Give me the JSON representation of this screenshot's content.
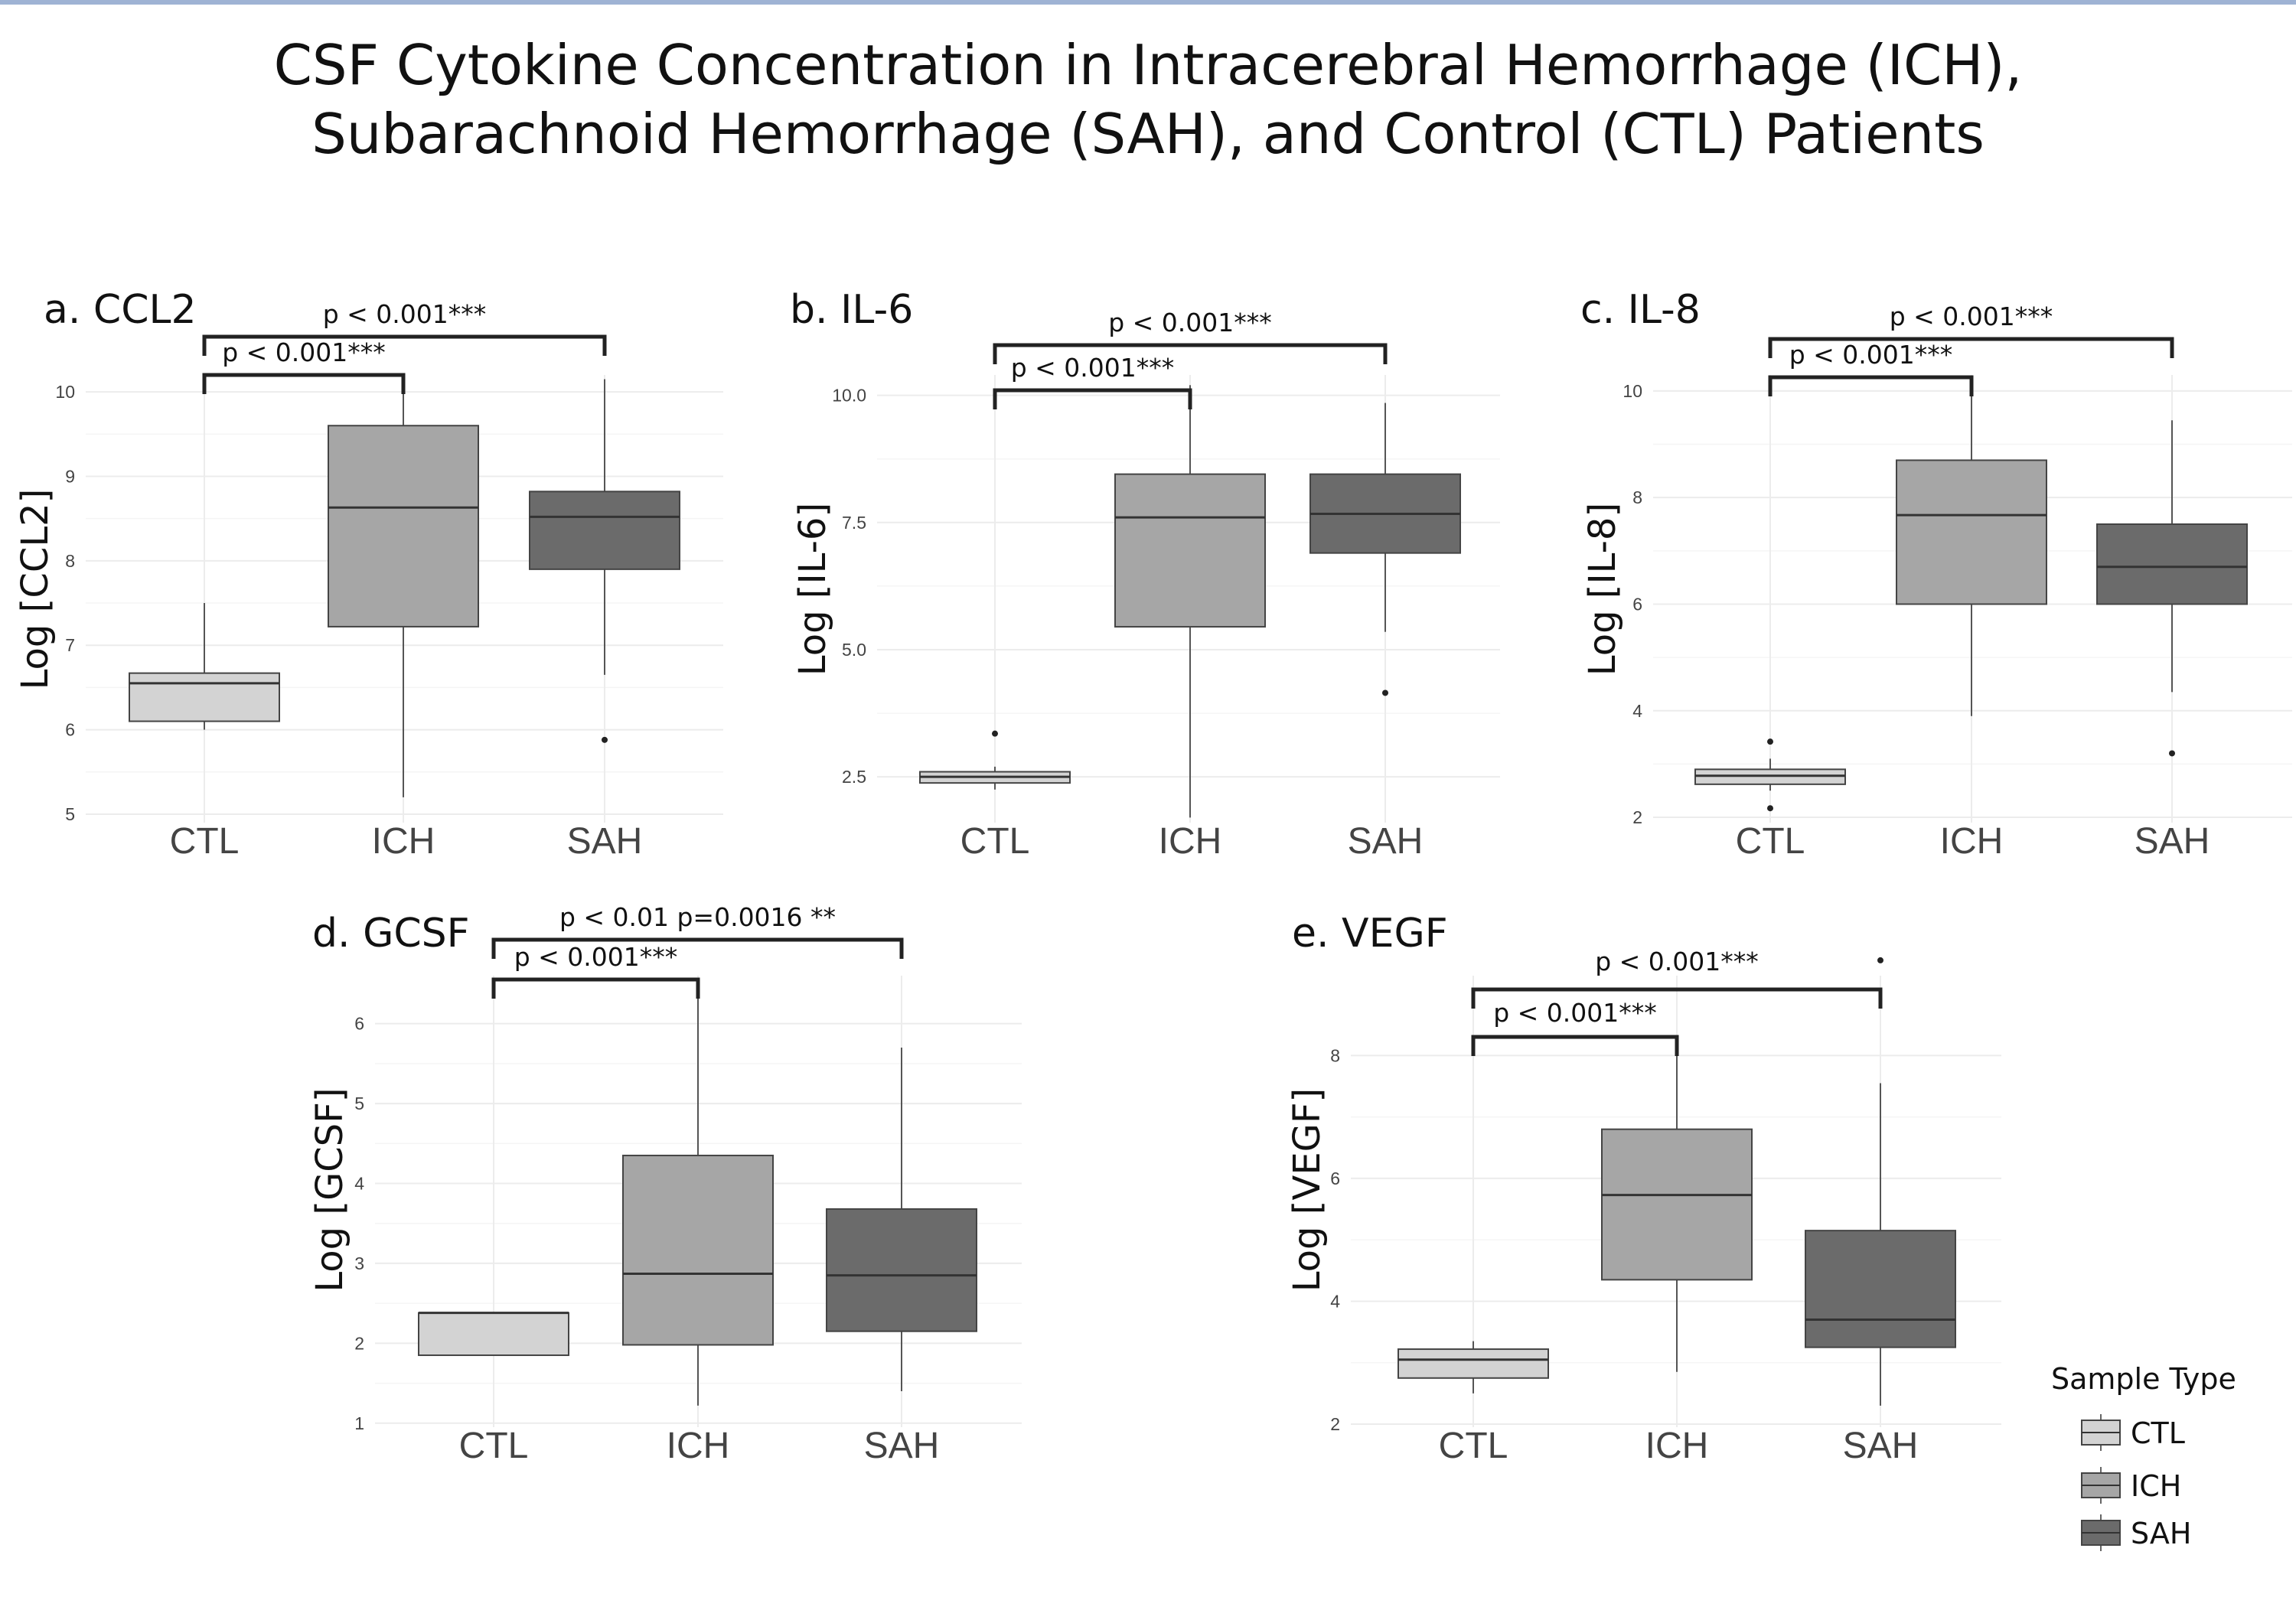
{
  "title": "CSF Cytokine Concentration in Intracerebral Hemorrhage (ICH), Subarachnoid Hemorrhage (SAH), and Control (CTL) Patients",
  "colors": {
    "CTL": "#d3d3d3",
    "ICH": "#a6a6a6",
    "SAH": "#6b6b6b",
    "grid": "#ececec",
    "bracket": "#222222"
  },
  "legend": {
    "title": "Sample Type",
    "items": [
      "CTL",
      "ICH",
      "SAH"
    ]
  },
  "chart_data": [
    {
      "type": "box",
      "title": "a. CCL2",
      "ylabel": "Log [CCL2]",
      "categories": [
        "CTL",
        "ICH",
        "SAH"
      ],
      "ylim": [
        4.9,
        10.2
      ],
      "yticks": [
        5,
        6,
        7,
        8,
        9,
        10
      ],
      "ytick_labels": [
        "5",
        "6",
        "7",
        "8",
        "9",
        "10"
      ],
      "boxes": [
        {
          "group": "CTL",
          "min": 6.0,
          "q1": 6.1,
          "median": 6.55,
          "q3": 6.67,
          "max": 7.5,
          "outliers": []
        },
        {
          "group": "ICH",
          "min": 5.2,
          "q1": 7.22,
          "median": 8.63,
          "q3": 9.6,
          "max": 10.1,
          "outliers": []
        },
        {
          "group": "SAH",
          "min": 6.65,
          "q1": 7.9,
          "median": 8.52,
          "q3": 8.82,
          "max": 10.15,
          "outliers": [
            5.88
          ]
        }
      ],
      "comparisons": [
        {
          "from": "CTL",
          "to": "ICH",
          "label": "p < 0.001***"
        },
        {
          "from": "CTL",
          "to": "SAH",
          "label": "p < 0.001***"
        }
      ]
    },
    {
      "type": "box",
      "title": "b. IL-6",
      "ylabel": "Log [IL-6]",
      "categories": [
        "CTL",
        "ICH",
        "SAH"
      ],
      "ylim": [
        1.6,
        10.4
      ],
      "yticks": [
        2.5,
        5.0,
        7.5,
        10.0
      ],
      "ytick_labels": [
        "2.5",
        "5.0",
        "7.5",
        "10.0"
      ],
      "boxes": [
        {
          "group": "CTL",
          "min": 2.25,
          "q1": 2.38,
          "median": 2.5,
          "q3": 2.6,
          "max": 2.7,
          "outliers": [
            3.35
          ]
        },
        {
          "group": "ICH",
          "min": 1.7,
          "q1": 5.45,
          "median": 7.6,
          "q3": 8.45,
          "max": 10.2,
          "outliers": []
        },
        {
          "group": "SAH",
          "min": 5.35,
          "q1": 6.9,
          "median": 7.67,
          "q3": 8.45,
          "max": 9.85,
          "outliers": [
            4.15
          ]
        }
      ],
      "comparisons": [
        {
          "from": "CTL",
          "to": "ICH",
          "label": "p < 0.001***"
        },
        {
          "from": "CTL",
          "to": "SAH",
          "label": "p < 0.001***"
        }
      ]
    },
    {
      "type": "box",
      "title": "c. IL-8",
      "ylabel": "Log [IL-8]",
      "categories": [
        "CTL",
        "ICH",
        "SAH"
      ],
      "ylim": [
        1.9,
        10.3
      ],
      "yticks": [
        2,
        4,
        6,
        8,
        10
      ],
      "ytick_labels": [
        "2",
        "4",
        "6",
        "8",
        "10"
      ],
      "boxes": [
        {
          "group": "CTL",
          "min": 2.5,
          "q1": 2.62,
          "median": 2.78,
          "q3": 2.9,
          "max": 3.1,
          "outliers": [
            3.42,
            2.17
          ]
        },
        {
          "group": "ICH",
          "min": 3.9,
          "q1": 6.0,
          "median": 7.67,
          "q3": 8.7,
          "max": 10.0,
          "outliers": []
        },
        {
          "group": "SAH",
          "min": 4.35,
          "q1": 6.0,
          "median": 6.7,
          "q3": 7.5,
          "max": 9.45,
          "outliers": [
            3.2
          ]
        }
      ],
      "comparisons": [
        {
          "from": "CTL",
          "to": "ICH",
          "label": "p < 0.001***"
        },
        {
          "from": "CTL",
          "to": "SAH",
          "label": "p < 0.001***"
        }
      ]
    },
    {
      "type": "box",
      "title": "d. GCSF",
      "ylabel": "Log [GCSF]",
      "categories": [
        "CTL",
        "ICH",
        "SAH"
      ],
      "ylim": [
        0.95,
        6.6
      ],
      "yticks": [
        1,
        2,
        3,
        4,
        5,
        6
      ],
      "ytick_labels": [
        "1",
        "2",
        "3",
        "4",
        "5",
        "6"
      ],
      "boxes": [
        {
          "group": "CTL",
          "min": 1.85,
          "q1": 1.85,
          "median": 2.38,
          "q3": 2.38,
          "max": 2.38,
          "outliers": []
        },
        {
          "group": "ICH",
          "min": 1.22,
          "q1": 1.98,
          "median": 2.87,
          "q3": 4.35,
          "max": 6.4,
          "outliers": []
        },
        {
          "group": "SAH",
          "min": 1.4,
          "q1": 2.15,
          "median": 2.85,
          "q3": 3.68,
          "max": 5.7,
          "outliers": []
        }
      ],
      "comparisons": [
        {
          "from": "CTL",
          "to": "ICH",
          "label": "p < 0.001***"
        },
        {
          "from": "CTL",
          "to": "SAH",
          "label": "p < 0.01 p=0.0016 **"
        }
      ]
    },
    {
      "type": "box",
      "title": "e. VEGF",
      "ylabel": "Log [VEGF]",
      "categories": [
        "CTL",
        "ICH",
        "SAH"
      ],
      "ylim": [
        1.95,
        9.3
      ],
      "yticks": [
        2,
        4,
        6,
        8
      ],
      "ytick_labels": [
        "2",
        "4",
        "6",
        "8"
      ],
      "boxes": [
        {
          "group": "CTL",
          "min": 2.5,
          "q1": 2.75,
          "median": 3.05,
          "q3": 3.22,
          "max": 3.35,
          "outliers": []
        },
        {
          "group": "ICH",
          "min": 2.85,
          "q1": 4.35,
          "median": 5.73,
          "q3": 6.8,
          "max": 8.3,
          "outliers": []
        },
        {
          "group": "SAH",
          "min": 2.3,
          "q1": 3.25,
          "median": 3.7,
          "q3": 5.15,
          "max": 7.55,
          "outliers": [
            9.55
          ]
        }
      ],
      "comparisons": [
        {
          "from": "CTL",
          "to": "ICH",
          "label": "p < 0.001***"
        },
        {
          "from": "CTL",
          "to": "SAH",
          "label": "p < 0.001***"
        }
      ]
    }
  ]
}
